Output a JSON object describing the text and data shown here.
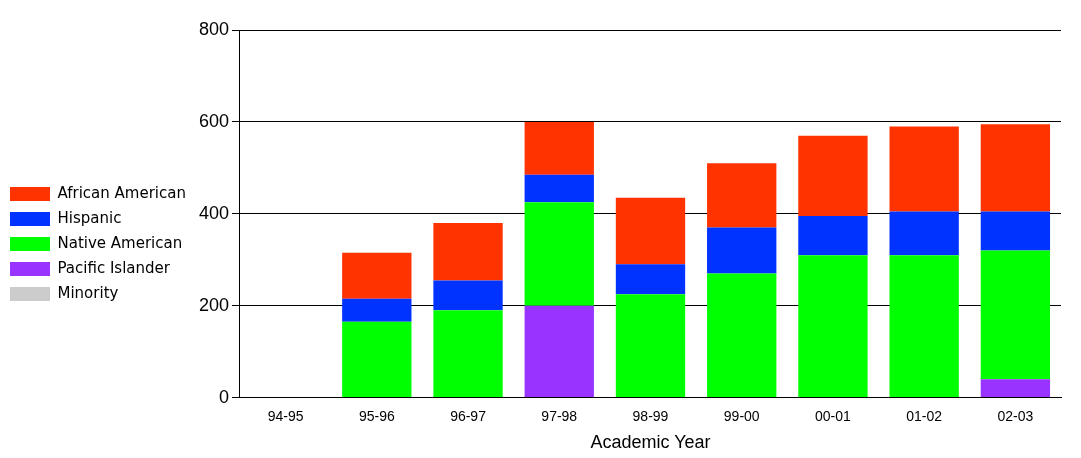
{
  "chart_data": {
    "type": "bar",
    "stacked": true,
    "xlabel": "Academic Year",
    "categories": [
      "94-95",
      "95-96",
      "96-97",
      "97-98",
      "98-99",
      "99-00",
      "00-01",
      "01-02",
      "02-03"
    ],
    "series": [
      {
        "name": "Minority",
        "color": "#cccccc",
        "values": [
          null,
          null,
          null,
          null,
          null,
          null,
          null,
          null,
          null
        ]
      },
      {
        "name": "Pacific Islander",
        "color": "#9933ff",
        "values": [
          null,
          null,
          null,
          200,
          null,
          null,
          null,
          null,
          40
        ]
      },
      {
        "name": "Native American",
        "color": "#00ff00",
        "values": [
          null,
          165,
          190,
          225,
          225,
          270,
          310,
          310,
          280
        ]
      },
      {
        "name": "Hispanic",
        "color": "#0033ff",
        "values": [
          null,
          50,
          65,
          60,
          65,
          100,
          85,
          95,
          85
        ]
      },
      {
        "name": "African American",
        "color": "#ff3300",
        "values": [
          null,
          100,
          125,
          115,
          145,
          140,
          175,
          185,
          190
        ]
      }
    ],
    "ylim": [
      0,
      800
    ],
    "yticks": [
      0,
      200,
      400,
      600,
      800
    ],
    "grid": "y",
    "legend": "left"
  }
}
